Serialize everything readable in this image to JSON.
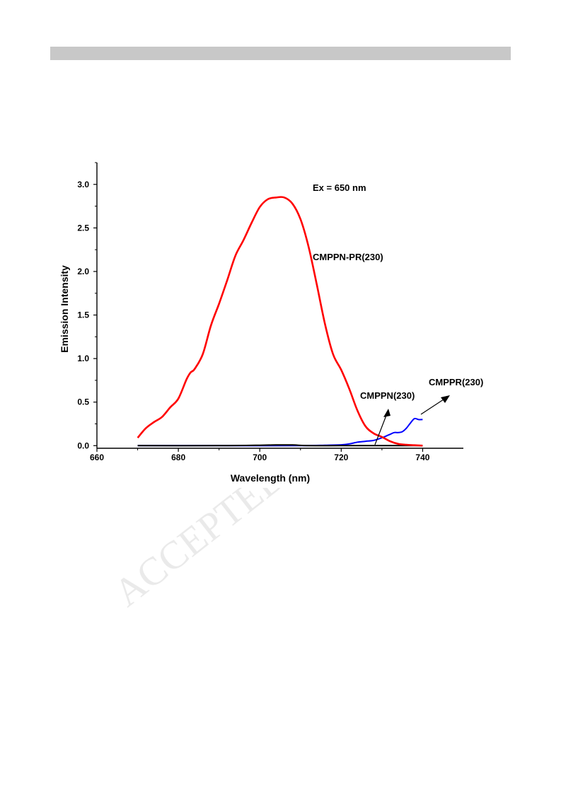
{
  "watermark": {
    "text": "ACCEPTED MANUSCRIPT"
  },
  "chart_data": {
    "type": "line",
    "xlabel": "Wavelength (nm)",
    "ylabel": "Emission Intensity",
    "xlim": [
      660,
      750
    ],
    "ylim": [
      -0.03,
      3.25
    ],
    "x_ticks": [
      660,
      680,
      700,
      720,
      740
    ],
    "y_ticks": [
      0.0,
      0.5,
      1.0,
      1.5,
      2.0,
      2.5,
      3.0
    ],
    "y_tick_labels": [
      "0.0",
      "0.5",
      "1.0",
      "1.5",
      "2.0",
      "2.5",
      "3.0"
    ],
    "grid": false,
    "annotations": [
      {
        "text": "Ex = 650 nm"
      },
      {
        "text": "CMPPN-PR(230)"
      },
      {
        "text": "CMPPN(230)"
      },
      {
        "text": "CMPPR(230)"
      }
    ],
    "series": [
      {
        "name": "CMPPN-PR(230)",
        "color": "#ff0000",
        "x": [
          670,
          672,
          674,
          676,
          678,
          680,
          682,
          683,
          684,
          686,
          688,
          690,
          692,
          694,
          696,
          698,
          700,
          702,
          704,
          706,
          708,
          710,
          712,
          714,
          716,
          718,
          720,
          722,
          724,
          726,
          728,
          730,
          732,
          734,
          736,
          738,
          740
        ],
        "y": [
          0.09,
          0.2,
          0.27,
          0.33,
          0.44,
          0.54,
          0.76,
          0.84,
          0.88,
          1.05,
          1.38,
          1.63,
          1.9,
          2.18,
          2.36,
          2.56,
          2.74,
          2.83,
          2.85,
          2.85,
          2.78,
          2.6,
          2.28,
          1.85,
          1.4,
          1.05,
          0.87,
          0.65,
          0.4,
          0.22,
          0.14,
          0.1,
          0.05,
          0.02,
          0.01,
          0.005,
          0.0
        ]
      },
      {
        "name": "CMPPN(230)",
        "color": "#000000",
        "x": [
          670,
          690,
          700,
          704,
          708,
          712,
          720,
          730,
          740
        ],
        "y": [
          0.0,
          0.0,
          0.005,
          0.008,
          0.008,
          0.0,
          0.0,
          0.0,
          0.0
        ]
      },
      {
        "name": "CMPPR(230)",
        "color": "#0000ff",
        "x": [
          670,
          690,
          710,
          716,
          720,
          722,
          724,
          726,
          728,
          730,
          731,
          732,
          733,
          734,
          735,
          736,
          737,
          738,
          739,
          740
        ],
        "y": [
          0.0,
          0.0,
          0.0,
          0.005,
          0.01,
          0.02,
          0.04,
          0.05,
          0.06,
          0.09,
          0.11,
          0.13,
          0.15,
          0.15,
          0.16,
          0.2,
          0.26,
          0.31,
          0.3,
          0.3
        ]
      }
    ]
  }
}
